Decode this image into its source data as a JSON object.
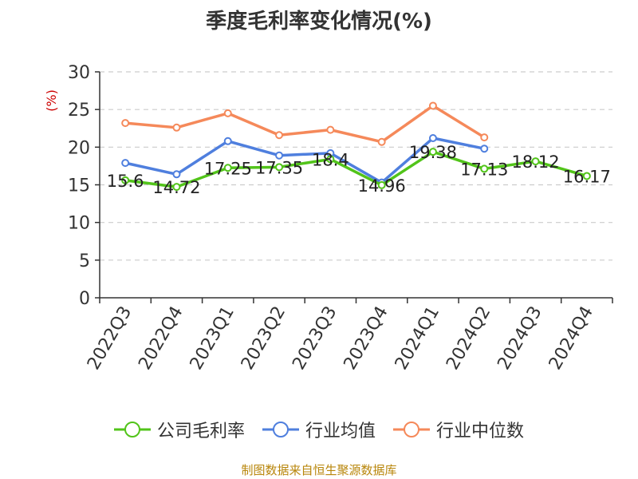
{
  "chart_data": {
    "type": "line",
    "title": "季度毛利率变化情况(%)",
    "ylabel": "(%)",
    "xlabel": "",
    "ylim": [
      0,
      30
    ],
    "yticks": [
      0,
      5,
      10,
      15,
      20,
      25,
      30
    ],
    "grid": true,
    "legend_position": "bottom",
    "categories": [
      "2022Q3",
      "2022Q4",
      "2023Q1",
      "2023Q2",
      "2023Q3",
      "2023Q4",
      "2024Q1",
      "2024Q2",
      "2024Q3",
      "2024Q4"
    ],
    "series": [
      {
        "name": "公司毛利率",
        "color": "#52c41a",
        "values": [
          15.6,
          14.72,
          17.25,
          17.35,
          18.4,
          14.96,
          19.38,
          17.13,
          18.12,
          16.17
        ],
        "labels": [
          "15.6",
          "14.72",
          "17.25",
          "17.35",
          "18.4",
          "14.96",
          "19.38",
          "17.13",
          "18.12",
          "16.17"
        ]
      },
      {
        "name": "行业均值",
        "color": "#4f7fde",
        "values": [
          17.9,
          16.4,
          20.8,
          18.9,
          19.2,
          15.3,
          21.2,
          19.8,
          null,
          null
        ]
      },
      {
        "name": "行业中位数",
        "color": "#f5895a",
        "values": [
          23.2,
          22.6,
          24.5,
          21.6,
          22.3,
          20.7,
          25.5,
          21.3,
          null,
          null
        ]
      }
    ]
  },
  "source_note": "制图数据来自恒生聚源数据库"
}
